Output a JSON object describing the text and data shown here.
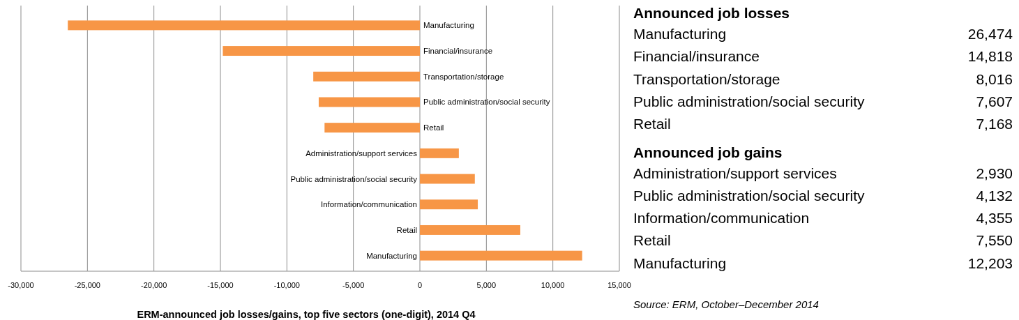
{
  "chart_data": [
    {
      "type": "bar",
      "orientation": "horizontal",
      "title": "ERM-announced job losses/gains, top five sectors (one-digit), 2014 Q4",
      "categories": [
        "Manufacturing",
        "Financial/insurance",
        "Transportation/storage",
        "Public administration/social security",
        "Retail",
        "Administration/support services",
        "Public administration/social security",
        "Information/communication",
        "Retail",
        "Manufacturing"
      ],
      "values": [
        -26474,
        -14818,
        -8016,
        -7607,
        -7168,
        2930,
        4132,
        4355,
        7550,
        12203
      ],
      "color": "#f79646",
      "xlim": [
        -30000,
        15000
      ],
      "xticks": [
        {
          "value": -30000,
          "label": "-30,000"
        },
        {
          "value": -25000,
          "label": "-25,000"
        },
        {
          "value": -20000,
          "label": "-20,000"
        },
        {
          "value": -15000,
          "label": "-15,000"
        },
        {
          "value": -10000,
          "label": "-10,000"
        },
        {
          "value": -5000,
          "label": "-5,000"
        },
        0,
        {
          "value": 5000,
          "label": "5,000"
        },
        {
          "value": 10000,
          "label": "10,000"
        },
        {
          "value": 15000,
          "label": "15,000"
        }
      ],
      "grid": "x"
    },
    {
      "type": "other",
      "title": "Announced job losses",
      "categories": [
        "Manufacturing",
        "Financial/insurance",
        "Transportation/storage",
        "Public administration/social security",
        "Retail"
      ],
      "values": [
        26474,
        14818,
        8016,
        7607,
        7168
      ],
      "value_labels": [
        "26,474",
        "14,818",
        "8,016",
        "7,607",
        "7,168"
      ]
    },
    {
      "type": "other",
      "title": "Announced job gains",
      "categories": [
        "Administration/support services",
        "Public administration/social security",
        "Information/communication",
        "Retail",
        "Manufacturing"
      ],
      "values": [
        2930,
        4132,
        4355,
        7550,
        12203
      ],
      "value_labels": [
        "2,930",
        "4,132",
        "4,355",
        "7,550",
        "12,203"
      ],
      "annotations": [
        "Source: ERM, October–December 2014"
      ]
    }
  ]
}
